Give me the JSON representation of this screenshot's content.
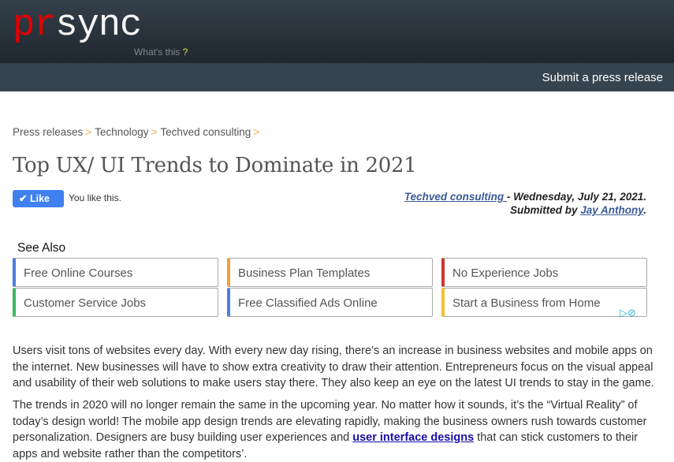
{
  "header": {
    "logo_pr": "pr",
    "logo_sync": "sync",
    "whats_this": "What's this",
    "whats_q": "?",
    "submit": "Submit a press release"
  },
  "breadcrumb": [
    "Press releases",
    "Technology",
    "Techved consulting"
  ],
  "breadcrumb_sep": ">",
  "title": "Top UX/ UI Trends to Dominate in 2021",
  "like": {
    "label": "Like",
    "status": "You like this."
  },
  "meta": {
    "company": "Techved consulting ",
    "date": "- Wednesday, July 21, 2021.",
    "submitted_by": "Submitted by ",
    "author": "Jay Anthony",
    "period": "."
  },
  "see_also": {
    "heading": "See Also",
    "items": [
      {
        "label": "Free Online Courses",
        "color": "#4a7fe0"
      },
      {
        "label": "Business Plan Templates",
        "color": "#f0a030"
      },
      {
        "label": "No Experience Jobs",
        "color": "#d0342c"
      },
      {
        "label": "Customer Service Jobs",
        "color": "#3cb860"
      },
      {
        "label": "Free Classified Ads Online",
        "color": "#4a7fe0"
      },
      {
        "label": "Start a Business from Home",
        "color": "#f0c030"
      }
    ]
  },
  "body": {
    "p1": "Users visit tons of websites every day. With every new day rising, there’s an increase in business websites and mobile apps on the internet. New businesses will have to show extra creativity to draw their attention. Entrepreneurs focus on the visual appeal and usability of their web solutions to make users stay there. They also keep an eye on the latest UI trends to stay in the game.",
    "p2_a": "The trends in 2020 will no longer remain the same in the upcoming year. No matter how it sounds, it’s the “Virtual Reality” of today’s design world! The mobile app design trends are elevating rapidly, making the business owners rush towards customer personalization. Designers are busy building user experiences and ",
    "p2_link": "user interface designs",
    "p2_b": " that can stick customers to their apps and website rather than the competitors’."
  }
}
